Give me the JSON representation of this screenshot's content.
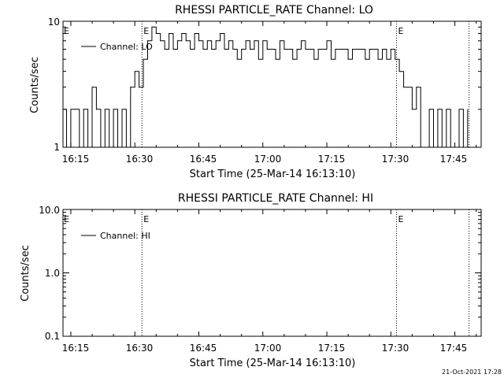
{
  "footer_date": "21-Oct-2021 17:28",
  "chart_data": [
    {
      "type": "line",
      "title": "RHESSI PARTICLE_RATE Channel: LO",
      "xlabel": "Start Time (25-Mar-14 16:13:10)",
      "ylabel": "Counts/sec",
      "y_scale": "log",
      "xlim": [
        "16:13:10",
        "17:51:10"
      ],
      "ylim": [
        1,
        10
      ],
      "x_ticks": [
        "16:15",
        "16:30",
        "16:45",
        "17:00",
        "17:15",
        "17:30",
        "17:45"
      ],
      "y_ticks": [
        "1",
        "10"
      ],
      "legend_position": "top-left",
      "eclipse_marker": "E",
      "markers": [
        {
          "time": "16:31:40",
          "style": "dotted",
          "label": "E"
        },
        {
          "time": "17:31:20",
          "style": "dotted",
          "label": "E"
        },
        {
          "time": "17:48:20",
          "style": "dotted",
          "label": ""
        }
      ],
      "series": [
        {
          "name": "Channel: LO",
          "color": "#000000",
          "x": [
            "16:13:10",
            "16:14:00",
            "16:15:00",
            "16:16:00",
            "16:17:00",
            "16:18:00",
            "16:19:00",
            "16:20:00",
            "16:21:00",
            "16:22:00",
            "16:23:00",
            "16:24:00",
            "16:25:00",
            "16:26:00",
            "16:27:00",
            "16:28:00",
            "16:29:00",
            "16:30:00",
            "16:31:00",
            "16:32:00",
            "16:33:00",
            "16:34:00",
            "16:35:00",
            "16:36:00",
            "16:37:00",
            "16:38:00",
            "16:39:00",
            "16:40:00",
            "16:41:00",
            "16:42:00",
            "16:43:00",
            "16:44:00",
            "16:45:00",
            "16:46:00",
            "16:47:00",
            "16:48:00",
            "16:49:00",
            "16:50:00",
            "16:51:00",
            "16:52:00",
            "16:53:00",
            "16:54:00",
            "16:55:00",
            "16:56:00",
            "16:57:00",
            "16:58:00",
            "16:59:00",
            "17:00:00",
            "17:01:00",
            "17:02:00",
            "17:03:00",
            "17:04:00",
            "17:05:00",
            "17:06:00",
            "17:07:00",
            "17:08:00",
            "17:09:00",
            "17:10:00",
            "17:11:00",
            "17:12:00",
            "17:13:00",
            "17:14:00",
            "17:15:00",
            "17:16:00",
            "17:17:00",
            "17:18:00",
            "17:19:00",
            "17:20:00",
            "17:21:00",
            "17:22:00",
            "17:23:00",
            "17:24:00",
            "17:25:00",
            "17:26:00",
            "17:27:00",
            "17:28:00",
            "17:29:00",
            "17:30:00",
            "17:31:00",
            "17:32:00",
            "17:33:00",
            "17:34:00",
            "17:35:00",
            "17:36:00",
            "17:37:00",
            "17:38:00",
            "17:39:00",
            "17:40:00",
            "17:41:00",
            "17:42:00",
            "17:43:00",
            "17:44:00",
            "17:45:00",
            "17:46:00",
            "17:47:00",
            "17:48:00"
          ],
          "values": [
            2,
            1,
            2,
            2,
            1,
            2,
            1,
            3,
            2,
            1,
            2,
            1,
            2,
            1,
            2,
            1,
            3,
            4,
            3,
            5,
            7,
            9,
            8,
            7,
            6,
            8,
            6,
            7,
            8,
            7,
            6,
            8,
            7,
            6,
            7,
            6,
            7,
            8,
            6,
            7,
            6,
            5,
            6,
            7,
            6,
            7,
            5,
            7,
            6,
            6,
            5,
            7,
            6,
            6,
            5,
            6,
            7,
            6,
            6,
            5,
            6,
            6,
            7,
            5,
            6,
            6,
            6,
            5,
            6,
            6,
            6,
            5,
            6,
            6,
            5,
            6,
            5,
            6,
            5,
            4,
            3,
            3,
            2,
            3,
            1,
            1,
            2,
            1,
            2,
            1,
            2,
            1,
            1,
            2,
            1,
            2
          ]
        }
      ]
    },
    {
      "type": "line",
      "title": "RHESSI PARTICLE_RATE Channel: HI",
      "xlabel": "Start Time (25-Mar-14 16:13:10)",
      "ylabel": "Counts/sec",
      "y_scale": "log",
      "xlim": [
        "16:13:10",
        "17:51:10"
      ],
      "ylim": [
        0.1,
        10
      ],
      "x_ticks": [
        "16:15",
        "16:30",
        "16:45",
        "17:00",
        "17:15",
        "17:30",
        "17:45"
      ],
      "y_ticks": [
        "0.1",
        "1.0",
        "10.0"
      ],
      "legend_position": "top-left",
      "eclipse_marker": "E",
      "markers": [
        {
          "time": "16:31:40",
          "style": "dotted",
          "label": "E"
        },
        {
          "time": "17:31:20",
          "style": "dotted",
          "label": "E"
        },
        {
          "time": "17:48:20",
          "style": "dotted",
          "label": ""
        }
      ],
      "series": [
        {
          "name": "Channel: HI",
          "color": "#000000",
          "x": [],
          "values": []
        }
      ]
    }
  ]
}
